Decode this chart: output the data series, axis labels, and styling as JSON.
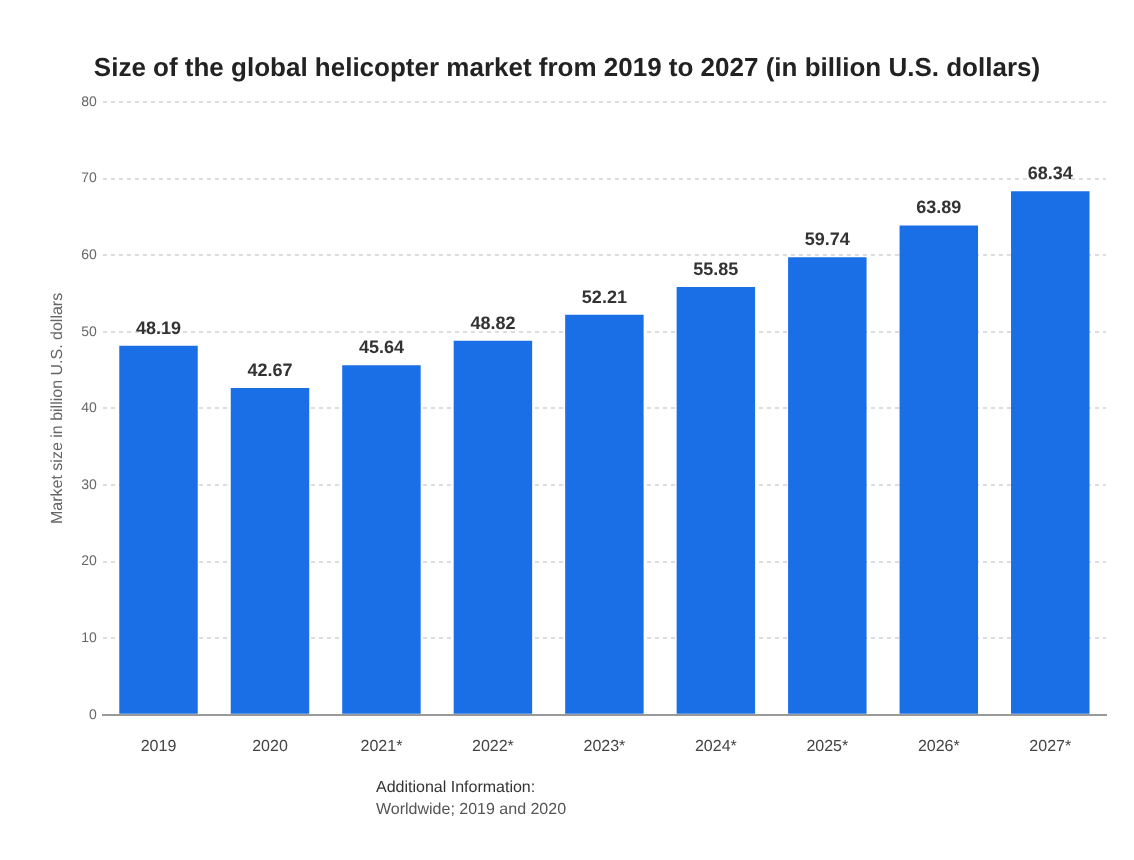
{
  "chart_data": {
    "type": "bar",
    "title": "Size of the global helicopter market from 2019 to 2027 (in billion U.S. dollars)",
    "ylabel": "Market size in billion U.S. dollars",
    "categories": [
      "2019",
      "2020",
      "2021*",
      "2022*",
      "2023*",
      "2024*",
      "2025*",
      "2026*",
      "2027*"
    ],
    "values": [
      48.19,
      42.67,
      45.64,
      48.82,
      52.21,
      55.85,
      59.74,
      63.89,
      68.34
    ],
    "color": "#1a6fe6",
    "ylim": [
      0,
      80
    ],
    "yticks": [
      0,
      10,
      20,
      30,
      40,
      50,
      60,
      70,
      80
    ],
    "grid": "y",
    "data_labels": true,
    "legend": false,
    "annotations": [
      "Additional Information:",
      "Worldwide; 2019 and 2020"
    ]
  }
}
